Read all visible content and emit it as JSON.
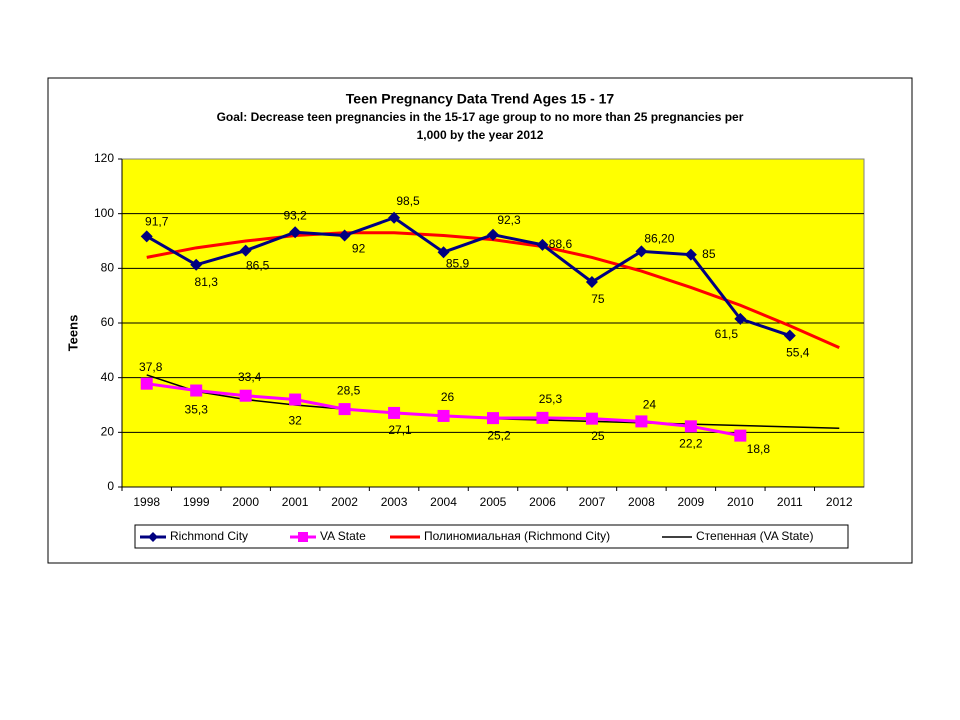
{
  "chart_data": {
    "type": "line",
    "title": "Teen Pregnancy Data Trend Ages 15 - 17",
    "subtitle": [
      "Goal:  Decrease teen pregnancies in the 15-17 age group to no more than 25 pregnancies per",
      "1,000 by the year 2012"
    ],
    "y_label": "Teens",
    "categories": [
      "1998",
      "1999",
      "2000",
      "2001",
      "2002",
      "2003",
      "2004",
      "2005",
      "2006",
      "2007",
      "2008",
      "2009",
      "2010",
      "2011",
      "2012"
    ],
    "ylim": [
      0,
      120
    ],
    "yticks": [
      0,
      20,
      40,
      60,
      80,
      100,
      120
    ],
    "grid": true,
    "legend": "bottom",
    "series": [
      {
        "name": "Richmond City",
        "color": "#000080",
        "marker": "diamond",
        "values": [
          91.7,
          81.3,
          86.5,
          93.2,
          92,
          98.5,
          85.9,
          92.3,
          88.6,
          75,
          86.2,
          85,
          61.5,
          55.4,
          null
        ],
        "value_labels": [
          "91,7",
          "81,3",
          "86,5",
          "93,2",
          "92",
          "98,5",
          "85,9",
          "92,3",
          "88,6",
          "75",
          "86,20",
          "85",
          "61,5",
          "55,4",
          null
        ]
      },
      {
        "name": "VA State",
        "color": "#ff00ff",
        "marker": "square",
        "values": [
          37.8,
          35.3,
          33.4,
          32,
          28.5,
          27.1,
          26,
          25.2,
          25.3,
          25,
          24,
          22.2,
          18.8,
          null,
          null
        ],
        "value_labels": [
          "37,8",
          "35,3",
          "33,4",
          "32",
          "28,5",
          "27,1",
          "26",
          "25,2",
          "25,3",
          "25",
          "24",
          "22,2",
          "18,8",
          null,
          null
        ]
      },
      {
        "name": "Полиномиальная  (Richmond City)",
        "color": "#ff0000",
        "marker": "none",
        "values": [
          84,
          87.5,
          90,
          92,
          93,
          93,
          92,
          90.5,
          88,
          84,
          79,
          73,
          66.5,
          59,
          51
        ]
      },
      {
        "name": "Степенная  (VA State)",
        "color": "#000000",
        "marker": "none",
        "values": [
          41,
          35,
          32,
          30,
          28.5,
          27,
          26,
          25,
          24.5,
          24,
          23.5,
          23,
          22.5,
          22,
          21.5
        ]
      }
    ]
  }
}
